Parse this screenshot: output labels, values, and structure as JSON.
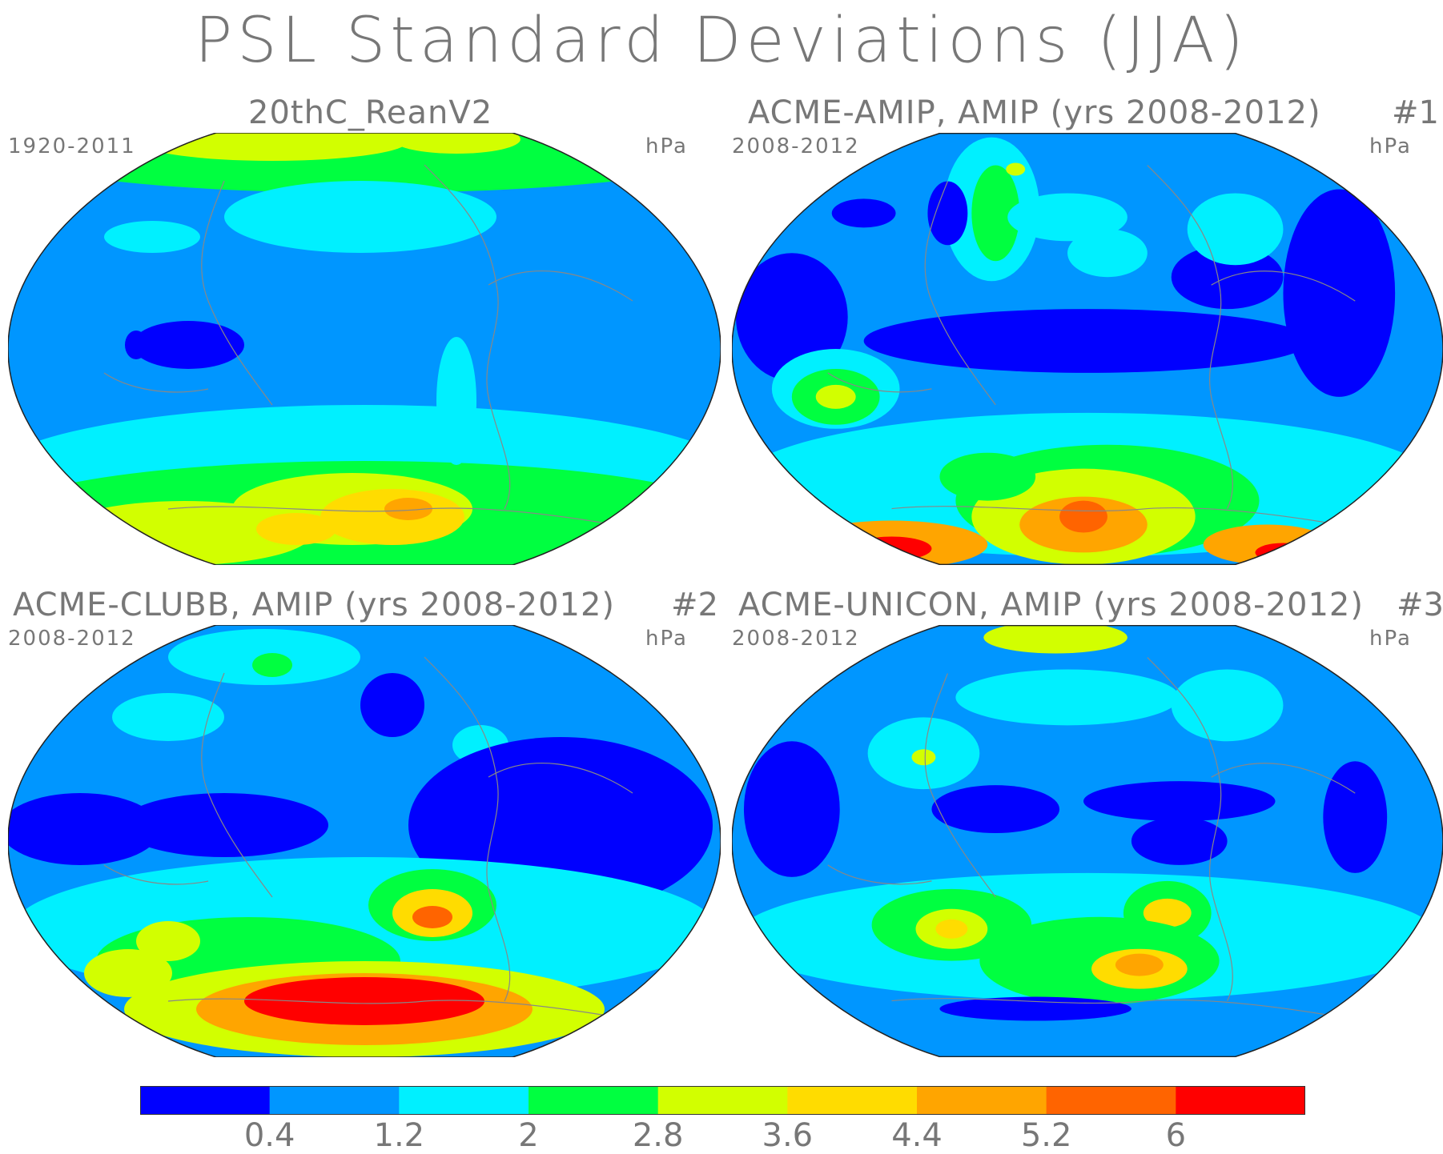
{
  "title": "PSL Standard Deviations (JJA)",
  "colors": {
    "background": "#ffffff",
    "land_outline": "#888888",
    "levels": [
      "#0000ff",
      "#0096ff",
      "#00f0ff",
      "#00ff40",
      "#d2ff00",
      "#ffdc00",
      "#ffa500",
      "#ff6400",
      "#ff0000"
    ]
  },
  "panels": [
    {
      "title": "20thC_ReanV2",
      "number": "",
      "period": "1920-2011",
      "units": "hPa"
    },
    {
      "title": "ACME-AMIP, AMIP (yrs 2008-2012)",
      "number": "#1",
      "period": "2008-2012",
      "units": "hPa"
    },
    {
      "title": "ACME-CLUBB, AMIP (yrs 2008-2012)",
      "number": "#2",
      "period": "2008-2012",
      "units": "hPa"
    },
    {
      "title": "ACME-UNICON, AMIP (yrs 2008-2012)",
      "number": "#3",
      "period": "2008-2012",
      "units": "hPa"
    }
  ],
  "chart_data": {
    "type": "heatmap",
    "title": "PSL Standard Deviations (JJA)",
    "units": "hPa",
    "colorbar": {
      "tick_labels": [
        "0.4",
        "1.2",
        "2",
        "2.8",
        "3.6",
        "4.4",
        "5.2",
        "6"
      ],
      "boundaries": [
        0.4,
        1.2,
        2,
        2.8,
        3.6,
        4.4,
        5.2,
        6
      ],
      "num_bins": 9
    },
    "maps": [
      {
        "name": "20thC_ReanV2",
        "period": "1920-2011"
      },
      {
        "name": "ACME-AMIP, AMIP (yrs 2008-2012)",
        "period": "2008-2012"
      },
      {
        "name": "ACME-CLUBB, AMIP (yrs 2008-2012)",
        "period": "2008-2012"
      },
      {
        "name": "ACME-UNICON, AMIP (yrs 2008-2012)",
        "period": "2008-2012"
      }
    ]
  }
}
